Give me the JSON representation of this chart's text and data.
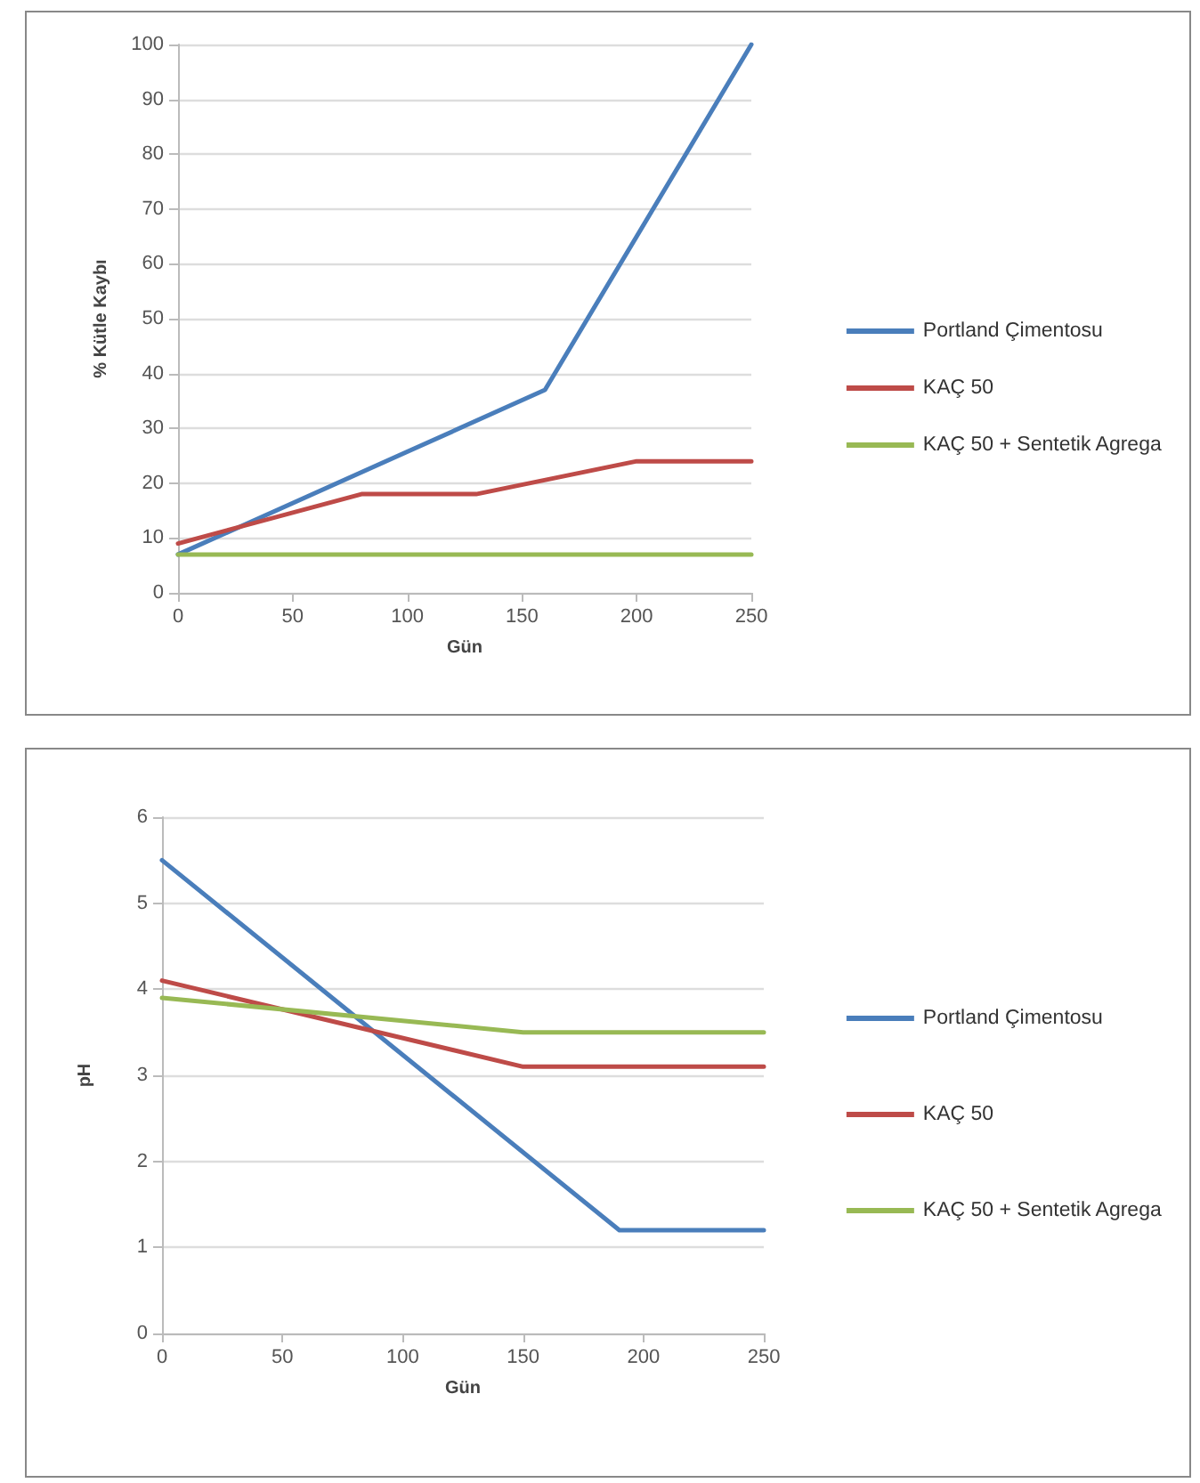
{
  "chart_data": [
    {
      "type": "line",
      "xlabel": "Gün",
      "ylabel": "% Kütle Kaybı",
      "xlim": [
        0,
        250
      ],
      "xticks": [
        0,
        50,
        100,
        150,
        200,
        250
      ],
      "ylim": [
        0,
        100
      ],
      "yticks": [
        0,
        10,
        20,
        30,
        40,
        50,
        60,
        70,
        80,
        90,
        100
      ],
      "grid": "y",
      "legend": "right",
      "marker": "none",
      "line_style": "solid",
      "series": [
        {
          "name": "Portland Çimentosu",
          "color": "#4a7ebb",
          "x": [
            0,
            160,
            250
          ],
          "values": [
            7,
            37,
            100
          ]
        },
        {
          "name": "KAÇ 50",
          "color": "#be4b48",
          "x": [
            0,
            80,
            130,
            200,
            250
          ],
          "values": [
            9,
            18,
            18,
            24,
            24
          ]
        },
        {
          "name": "KAÇ 50 + Sentetik Agrega",
          "color": "#98b954",
          "x": [
            0,
            250
          ],
          "values": [
            7,
            7
          ]
        }
      ]
    },
    {
      "type": "line",
      "xlabel": "Gün",
      "ylabel": "pH",
      "xlim": [
        0,
        250
      ],
      "xticks": [
        0,
        50,
        100,
        150,
        200,
        250
      ],
      "ylim": [
        0,
        6
      ],
      "yticks": [
        0,
        1,
        2,
        3,
        4,
        5,
        6
      ],
      "grid": "y",
      "legend": "right",
      "marker": "none",
      "line_style": "solid",
      "series": [
        {
          "name": "Portland Çimentosu",
          "color": "#4a7ebb",
          "x": [
            0,
            190,
            250
          ],
          "values": [
            5.5,
            1.2,
            1.2
          ]
        },
        {
          "name": "KAÇ 50",
          "color": "#be4b48",
          "x": [
            0,
            150,
            250
          ],
          "values": [
            4.1,
            3.1,
            3.1
          ]
        },
        {
          "name": "KAÇ 50 + Sentetik Agrega",
          "color": "#98b954",
          "x": [
            0,
            150,
            250
          ],
          "values": [
            3.9,
            3.5,
            3.5
          ]
        }
      ]
    }
  ]
}
